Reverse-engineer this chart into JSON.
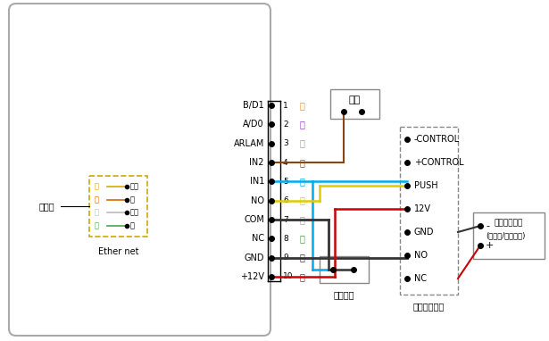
{
  "pins": [
    {
      "num": "1",
      "label_left": "B/D1",
      "label_right": "橙"
    },
    {
      "num": "2",
      "label_left": "A/D0",
      "label_right": "紫"
    },
    {
      "num": "3",
      "label_left": "ARLAM",
      "label_right": "灰"
    },
    {
      "num": "4",
      "label_left": "IN2",
      "label_right": "棕"
    },
    {
      "num": "5",
      "label_left": "IN1",
      "label_right": "蓝"
    },
    {
      "num": "6",
      "label_left": "NO",
      "label_right": "黄"
    },
    {
      "num": "7",
      "label_left": "COM",
      "label_right": "白"
    },
    {
      "num": "8",
      "label_left": "NC",
      "label_right": "綠"
    },
    {
      "num": "9",
      "label_left": "GND",
      "label_right": "黑"
    },
    {
      "num": "10",
      "label_left": "+12V",
      "label_right": "红"
    }
  ],
  "pin_right_colors": [
    "#ff8800",
    "#9933cc",
    "#999999",
    "#8B4513",
    "#00aaee",
    "#ddcc00",
    "#999999",
    "#449944",
    "#333333",
    "#cc0000"
  ],
  "ethernet_label": "Ether net",
  "ethernet_left_labels": [
    "黄",
    "橙",
    "白",
    "綠"
  ],
  "ethernet_right_labels": [
    "橙白",
    "橙",
    "綠白",
    "綠"
  ],
  "ethernet_line_colors": [
    "#ddaa00",
    "#dd6600",
    "#bbbbbb",
    "#44aa44"
  ],
  "power_labels": [
    "-CONTROL",
    "+CONTROL",
    "PUSH",
    "12V",
    "GND",
    "NO",
    "NC"
  ],
  "lock_label1": "断电开型电锁",
  "lock_label2": "(电插锁/磁力锁等)",
  "door_mag_label": "门磁",
  "exit_btn_label": "出门按鈕",
  "power_box_label": "门禁专用电源",
  "yitaiwang_label": "以太网"
}
